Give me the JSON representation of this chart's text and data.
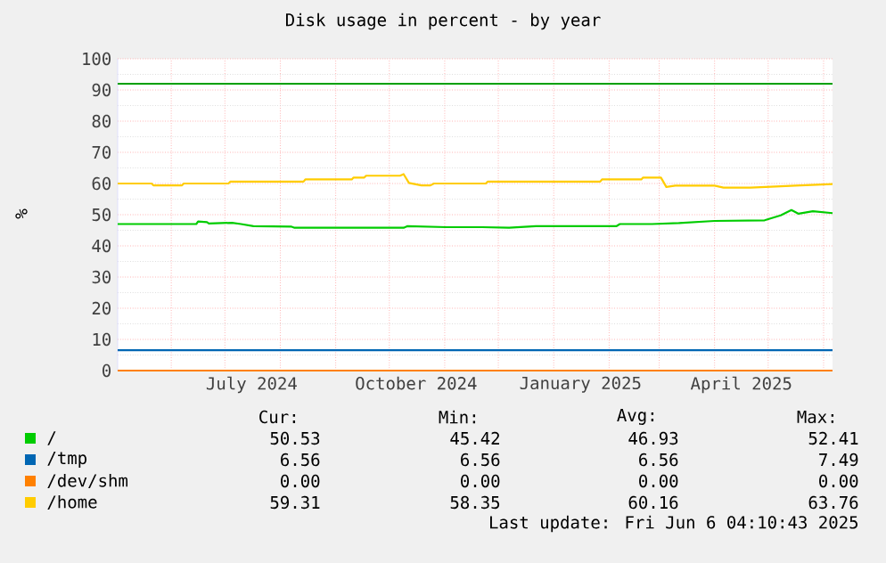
{
  "chart_data": {
    "type": "line",
    "title": "Disk usage in percent - by year",
    "ylabel": "%",
    "xlim": [
      "2024-05-02",
      "2025-06-06"
    ],
    "ylim": [
      0,
      100
    ],
    "xticks": [
      {
        "value": "2024-06-01",
        "label": null
      },
      {
        "value": "2024-07-01",
        "label": null
      },
      {
        "value": "2024-08-01",
        "label": null
      },
      {
        "value": "2024-09-01",
        "label": null
      },
      {
        "value": "2024-10-01",
        "label": null
      },
      {
        "value": "2024-11-01",
        "label": null
      },
      {
        "value": "2024-12-01",
        "label": null
      },
      {
        "value": "2025-01-01",
        "label": null
      },
      {
        "value": "2025-02-01",
        "label": null
      },
      {
        "value": "2025-03-01",
        "label": null
      },
      {
        "value": "2025-04-01",
        "label": null
      },
      {
        "value": "2025-05-01",
        "label": null
      },
      {
        "value": "2025-06-01",
        "label": null
      },
      {
        "value": "2024-07-16",
        "label": "July 2024"
      },
      {
        "value": "2024-10-16",
        "label": "October 2024"
      },
      {
        "value": "2025-01-16",
        "label": "January 2025"
      },
      {
        "value": "2025-04-16",
        "label": "April 2025"
      }
    ],
    "yticks": [
      0,
      10,
      20,
      30,
      40,
      50,
      60,
      70,
      80,
      90,
      100
    ],
    "grid": true,
    "legend": "bottom",
    "ref_lines": [
      {
        "axis": "y",
        "value": 92,
        "color": "#00a000"
      }
    ],
    "series": [
      {
        "name": "/",
        "color": "#00cc00",
        "x": [
          "2024-05-02",
          "2024-06-15",
          "2024-06-16",
          "2024-06-21",
          "2024-06-22",
          "2024-07-05",
          "2024-07-10",
          "2024-07-17",
          "2024-08-07",
          "2024-08-09",
          "2024-10-09",
          "2024-10-11",
          "2024-11-02",
          "2024-11-22",
          "2024-12-07",
          "2024-12-22",
          "2025-02-05",
          "2025-02-07",
          "2025-02-25",
          "2025-03-12",
          "2025-04-01",
          "2025-04-29",
          "2025-05-08",
          "2025-05-14",
          "2025-05-18",
          "2025-05-26",
          "2025-06-06"
        ],
        "values": [
          47.0,
          47.0,
          47.8,
          47.6,
          47.2,
          47.4,
          47.0,
          46.3,
          46.2,
          45.8,
          45.8,
          46.3,
          46.0,
          46.0,
          45.8,
          46.3,
          46.3,
          47.0,
          47.0,
          47.3,
          48.0,
          48.2,
          49.8,
          51.5,
          50.3,
          51.1,
          50.5
        ]
      },
      {
        "name": "/tmp",
        "color": "#0066b3",
        "x": [
          "2024-05-02",
          "2025-06-06"
        ],
        "values": [
          6.56,
          6.56
        ]
      },
      {
        "name": "/dev/shm",
        "color": "#ff8000",
        "x": [
          "2024-05-02",
          "2025-06-06"
        ],
        "values": [
          0,
          0
        ]
      },
      {
        "name": "/home",
        "color": "#ffcc00",
        "x": [
          "2024-05-02",
          "2024-05-21",
          "2024-05-22",
          "2024-06-07",
          "2024-06-08",
          "2024-07-03",
          "2024-07-04",
          "2024-08-14",
          "2024-08-15",
          "2024-09-10",
          "2024-09-11",
          "2024-09-17",
          "2024-09-18",
          "2024-10-07",
          "2024-10-09",
          "2024-10-12",
          "2024-10-19",
          "2024-10-24",
          "2024-10-26",
          "2024-11-24",
          "2024-11-25",
          "2025-01-27",
          "2025-01-28",
          "2025-02-19",
          "2025-02-20",
          "2025-03-02",
          "2025-03-05",
          "2025-03-10",
          "2025-04-01",
          "2025-04-06",
          "2025-04-21",
          "2025-05-08",
          "2025-05-16",
          "2025-06-06"
        ],
        "values": [
          60.0,
          60.0,
          59.4,
          59.4,
          60.0,
          60.0,
          60.6,
          60.6,
          61.3,
          61.3,
          61.9,
          61.9,
          62.5,
          62.5,
          63.0,
          60.2,
          59.4,
          59.4,
          60.0,
          60.0,
          60.6,
          60.6,
          61.3,
          61.3,
          61.9,
          61.9,
          58.9,
          59.3,
          59.3,
          58.7,
          58.7,
          59.1,
          59.3,
          59.8
        ]
      }
    ],
    "annotations": [
      "Cur:",
      "Min:",
      "Avg:",
      "Max:",
      "50.53",
      "45.42",
      "46.93",
      "52.41",
      "6.56",
      "6.56",
      "6.56",
      "7.49",
      "0.00",
      "0.00",
      "0.00",
      "0.00",
      "59.31",
      "58.35",
      "60.16",
      "63.76",
      "Last update: Fri Jun  6 04:10:43 2025"
    ]
  }
}
